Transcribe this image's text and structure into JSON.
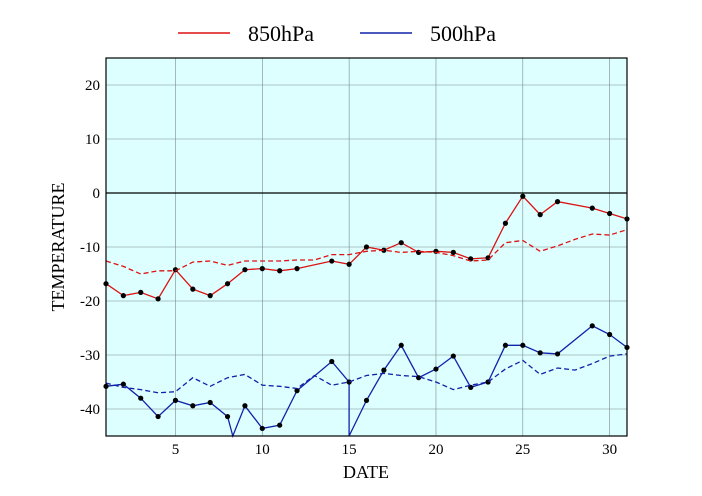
{
  "chart_data": {
    "type": "line",
    "xlabel": "DATE",
    "ylabel": "TEMPERATURE",
    "xlim": [
      1,
      31
    ],
    "ylim": [
      -45,
      25
    ],
    "xticks": [
      5,
      10,
      15,
      20,
      25,
      30
    ],
    "yticks": [
      20,
      10,
      0,
      -10,
      -20,
      -30,
      -40
    ],
    "grid": true,
    "zero_line": true,
    "legend_position": "top",
    "plot_background": "#ddffff",
    "series": [
      {
        "name": "850hPa",
        "color": "#dd1111",
        "style": "solid",
        "markers": true,
        "points": [
          [
            1,
            -16.8
          ],
          [
            2,
            -19.0
          ],
          [
            3,
            -18.4
          ],
          [
            4,
            -19.6
          ],
          [
            5,
            -14.2
          ],
          [
            6,
            -17.8
          ],
          [
            7,
            -19.0
          ],
          [
            8,
            -16.8
          ],
          [
            9,
            -14.2
          ],
          [
            10,
            -14.0
          ],
          [
            11,
            -14.4
          ],
          [
            12,
            -14.0
          ],
          [
            14,
            -12.6
          ],
          [
            15,
            -13.2
          ],
          [
            16,
            -10.0
          ],
          [
            17,
            -10.6
          ],
          [
            18,
            -9.2
          ],
          [
            19,
            -11.0
          ],
          [
            20,
            -10.8
          ],
          [
            21,
            -11.0
          ],
          [
            22,
            -12.2
          ],
          [
            23,
            -12.0
          ],
          [
            24,
            -5.6
          ],
          [
            25,
            -0.6
          ],
          [
            26,
            -4.0
          ],
          [
            27,
            -1.6
          ],
          [
            29,
            -2.8
          ],
          [
            30,
            -3.8
          ],
          [
            31,
            -4.8
          ]
        ]
      },
      {
        "name": "500hPa",
        "color": "#1122aa",
        "style": "solid",
        "markers": true,
        "points": [
          [
            1,
            -35.8
          ],
          [
            2,
            -35.4
          ],
          [
            3,
            -38.0
          ],
          [
            4,
            -41.4
          ],
          [
            5,
            -38.4
          ],
          [
            6,
            -39.4
          ],
          [
            7,
            -38.8
          ],
          [
            8,
            -41.4
          ],
          [
            8.3,
            -46
          ],
          [
            9,
            -39.4
          ],
          [
            10,
            -43.6
          ],
          [
            11,
            -43.0
          ],
          [
            12,
            -36.6
          ],
          [
            14,
            -31.2
          ],
          [
            15,
            -35.0
          ],
          [
            15,
            -46
          ],
          [
            16,
            -38.4
          ],
          [
            17,
            -32.8
          ],
          [
            18,
            -28.2
          ],
          [
            19,
            -34.2
          ],
          [
            20,
            -32.6
          ],
          [
            21,
            -30.2
          ],
          [
            22,
            -36.0
          ],
          [
            23,
            -35.0
          ],
          [
            24,
            -28.2
          ],
          [
            25,
            -28.2
          ],
          [
            26,
            -29.6
          ],
          [
            27,
            -29.8
          ],
          [
            29,
            -24.6
          ],
          [
            30,
            -26.2
          ],
          [
            31,
            -28.6
          ]
        ]
      },
      {
        "name": "",
        "color": "#dd1111",
        "style": "dashed",
        "markers": false,
        "points": [
          [
            1,
            -12.6
          ],
          [
            2,
            -13.6
          ],
          [
            3,
            -15.0
          ],
          [
            4,
            -14.4
          ],
          [
            5,
            -14.4
          ],
          [
            6,
            -12.8
          ],
          [
            7,
            -12.6
          ],
          [
            8,
            -13.4
          ],
          [
            9,
            -12.6
          ],
          [
            10,
            -12.6
          ],
          [
            11,
            -12.6
          ],
          [
            12,
            -12.4
          ],
          [
            13,
            -12.4
          ],
          [
            14,
            -11.4
          ],
          [
            15,
            -11.4
          ],
          [
            16,
            -10.8
          ],
          [
            17,
            -10.6
          ],
          [
            18,
            -11.0
          ],
          [
            19,
            -10.8
          ],
          [
            20,
            -11.0
          ],
          [
            21,
            -11.6
          ],
          [
            22,
            -12.6
          ],
          [
            23,
            -12.4
          ],
          [
            24,
            -9.2
          ],
          [
            25,
            -8.8
          ],
          [
            26,
            -10.8
          ],
          [
            27,
            -9.8
          ],
          [
            28,
            -8.6
          ],
          [
            29,
            -7.6
          ],
          [
            30,
            -7.8
          ],
          [
            31,
            -6.8
          ]
        ]
      },
      {
        "name": "",
        "color": "#1122aa",
        "style": "dashed",
        "markers": false,
        "points": [
          [
            1,
            -35.2
          ],
          [
            2,
            -36.0
          ],
          [
            3,
            -36.4
          ],
          [
            4,
            -37.0
          ],
          [
            5,
            -36.8
          ],
          [
            6,
            -34.2
          ],
          [
            7,
            -35.8
          ],
          [
            8,
            -34.2
          ],
          [
            9,
            -33.6
          ],
          [
            10,
            -35.6
          ],
          [
            11,
            -35.8
          ],
          [
            12,
            -36.2
          ],
          [
            13,
            -33.8
          ],
          [
            14,
            -35.6
          ],
          [
            15,
            -35.0
          ],
          [
            16,
            -33.8
          ],
          [
            17,
            -33.4
          ],
          [
            18,
            -33.8
          ],
          [
            19,
            -34.0
          ],
          [
            20,
            -35.0
          ],
          [
            21,
            -36.4
          ],
          [
            22,
            -35.6
          ],
          [
            23,
            -35.0
          ],
          [
            24,
            -32.6
          ],
          [
            25,
            -31.0
          ],
          [
            26,
            -33.6
          ],
          [
            27,
            -32.4
          ],
          [
            28,
            -32.8
          ],
          [
            29,
            -31.6
          ],
          [
            30,
            -30.2
          ],
          [
            31,
            -29.8
          ]
        ]
      }
    ]
  }
}
